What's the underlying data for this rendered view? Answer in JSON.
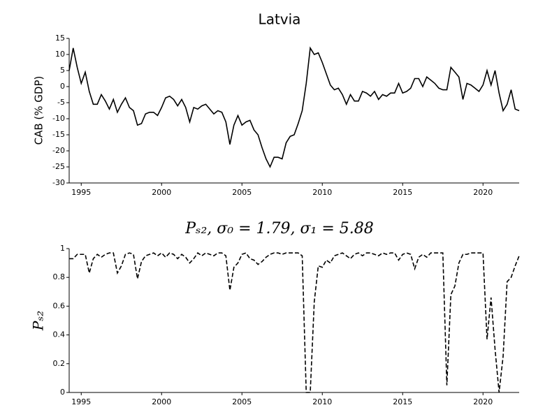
{
  "chart_data": [
    {
      "type": "line",
      "title": "Latvia",
      "y_label": "CAB (% GDP)",
      "x": [
        1994.25,
        1994.5,
        1994.75,
        1995,
        1995.25,
        1995.5,
        1995.75,
        1996,
        1996.25,
        1996.5,
        1996.75,
        1997,
        1997.25,
        1997.5,
        1997.75,
        1998,
        1998.25,
        1998.5,
        1998.75,
        1999,
        1999.25,
        1999.5,
        1999.75,
        2000,
        2000.25,
        2000.5,
        2000.75,
        2001,
        2001.25,
        2001.5,
        2001.75,
        2002,
        2002.25,
        2002.5,
        2002.75,
        2003,
        2003.25,
        2003.5,
        2003.75,
        2004,
        2004.25,
        2004.5,
        2004.75,
        2005,
        2005.25,
        2005.5,
        2005.75,
        2006,
        2006.25,
        2006.5,
        2006.75,
        2007,
        2007.25,
        2007.5,
        2007.75,
        2008,
        2008.25,
        2008.5,
        2008.75,
        2009,
        2009.25,
        2009.5,
        2009.75,
        2010,
        2010.25,
        2010.5,
        2010.75,
        2011,
        2011.25,
        2011.5,
        2011.75,
        2012,
        2012.25,
        2012.5,
        2012.75,
        2013,
        2013.25,
        2013.5,
        2013.75,
        2014,
        2014.25,
        2014.5,
        2014.75,
        2015,
        2015.25,
        2015.5,
        2015.75,
        2016,
        2016.25,
        2016.5,
        2016.75,
        2017,
        2017.25,
        2017.5,
        2017.75,
        2018,
        2018.25,
        2018.5,
        2018.75,
        2019,
        2019.25,
        2019.5,
        2019.75,
        2020,
        2020.25,
        2020.5,
        2020.75,
        2021,
        2021.25,
        2021.5,
        2021.75,
        2022,
        2022.25
      ],
      "series": [
        {
          "color": "#000000",
          "linestyle": "solid",
          "values": [
            5,
            12,
            6,
            1,
            4.5,
            -1.5,
            -5.5,
            -5.5,
            -2.5,
            -4.5,
            -7,
            -4,
            -8,
            -5.5,
            -3.5,
            -6.5,
            -7.5,
            -12,
            -11.5,
            -8.5,
            -8,
            -8,
            -9,
            -6.5,
            -3.5,
            -3,
            -4,
            -6,
            -4,
            -6.5,
            -11,
            -6.5,
            -7,
            -6,
            -5.5,
            -7,
            -8.5,
            -7.5,
            -8,
            -11,
            -18,
            -12,
            -9,
            -12,
            -11,
            -10.5,
            -13.5,
            -15,
            -19,
            -22.5,
            -25,
            -22,
            -22,
            -22.5,
            -17.5,
            -15.5,
            -15,
            -11.5,
            -7.5,
            1,
            12,
            10,
            10.5,
            7.5,
            4,
            0.5,
            -1,
            -0.5,
            -2.5,
            -5.5,
            -2.5,
            -4.5,
            -4.5,
            -1.5,
            -2,
            -3,
            -1.5,
            -4,
            -2.5,
            -3,
            -2,
            -2,
            1,
            -2,
            -1.5,
            -0.5,
            2.5,
            2.5,
            0,
            3,
            2,
            1,
            -0.5,
            -1,
            -1,
            6,
            4.5,
            3,
            -4,
            1,
            0.5,
            -0.5,
            -1.5,
            0.5,
            5,
            0.5,
            5,
            -2,
            -7.5,
            -5.5,
            -1,
            -7,
            -7.5
          ]
        }
      ],
      "xlim": [
        1994.25,
        2022.25
      ],
      "xticks": [
        1995,
        2000,
        2005,
        2010,
        2015,
        2020
      ],
      "ylim": [
        -30,
        15
      ],
      "yticks": [
        -30,
        -25,
        -20,
        -15,
        -10,
        -5,
        0,
        5,
        10,
        15
      ]
    },
    {
      "type": "line",
      "title": "Pₛ₂, σ₀ = 1.79, σ₁ = 5.88",
      "y_label": "Pₛ₂",
      "x": [
        1994.25,
        1994.5,
        1994.75,
        1995,
        1995.25,
        1995.5,
        1995.75,
        1996,
        1996.25,
        1996.5,
        1996.75,
        1997,
        1997.25,
        1997.5,
        1997.75,
        1998,
        1998.25,
        1998.5,
        1998.75,
        1999,
        1999.25,
        1999.5,
        1999.75,
        2000,
        2000.25,
        2000.5,
        2000.75,
        2001,
        2001.25,
        2001.5,
        2001.75,
        2002,
        2002.25,
        2002.5,
        2002.75,
        2003,
        2003.25,
        2003.5,
        2003.75,
        2004,
        2004.25,
        2004.5,
        2004.75,
        2005,
        2005.25,
        2005.5,
        2005.75,
        2006,
        2006.25,
        2006.5,
        2006.75,
        2007,
        2007.25,
        2007.5,
        2007.75,
        2008,
        2008.25,
        2008.5,
        2008.75,
        2009,
        2009.25,
        2009.5,
        2009.75,
        2010,
        2010.25,
        2010.5,
        2010.75,
        2011,
        2011.25,
        2011.5,
        2011.75,
        2012,
        2012.25,
        2012.5,
        2012.75,
        2013,
        2013.25,
        2013.5,
        2013.75,
        2014,
        2014.25,
        2014.5,
        2014.75,
        2015,
        2015.25,
        2015.5,
        2015.75,
        2016,
        2016.25,
        2016.5,
        2016.75,
        2017,
        2017.25,
        2017.5,
        2017.75,
        2018,
        2018.25,
        2018.5,
        2018.75,
        2019,
        2019.25,
        2019.5,
        2019.75,
        2020,
        2020.25,
        2020.5,
        2020.75,
        2021,
        2021.25,
        2021.5,
        2021.75,
        2022,
        2022.25
      ],
      "series": [
        {
          "color": "#000000",
          "linestyle": "dashed",
          "values": [
            0.93,
            0.93,
            0.96,
            0.96,
            0.96,
            0.83,
            0.93,
            0.96,
            0.94,
            0.96,
            0.97,
            0.97,
            0.83,
            0.88,
            0.96,
            0.97,
            0.96,
            0.79,
            0.91,
            0.95,
            0.96,
            0.97,
            0.95,
            0.97,
            0.94,
            0.97,
            0.96,
            0.93,
            0.96,
            0.94,
            0.9,
            0.93,
            0.97,
            0.95,
            0.97,
            0.96,
            0.95,
            0.97,
            0.97,
            0.95,
            0.71,
            0.87,
            0.9,
            0.96,
            0.97,
            0.93,
            0.92,
            0.89,
            0.91,
            0.94,
            0.96,
            0.97,
            0.97,
            0.96,
            0.97,
            0.97,
            0.97,
            0.97,
            0.95,
            0,
            0,
            0.63,
            0.88,
            0.87,
            0.92,
            0.9,
            0.95,
            0.96,
            0.97,
            0.95,
            0.93,
            0.96,
            0.97,
            0.95,
            0.97,
            0.97,
            0.96,
            0.95,
            0.97,
            0.96,
            0.97,
            0.97,
            0.92,
            0.96,
            0.97,
            0.96,
            0.86,
            0.94,
            0.96,
            0.94,
            0.97,
            0.97,
            0.97,
            0.97,
            0.05,
            0.68,
            0.74,
            0.9,
            0.96,
            0.96,
            0.97,
            0.97,
            0.97,
            0.97,
            0.37,
            0.66,
            0.3,
            0,
            0.25,
            0.77,
            0.8,
            0.88,
            0.95
          ]
        }
      ],
      "xlim": [
        1994.25,
        2022.25
      ],
      "xticks": [
        1995,
        2000,
        2005,
        2010,
        2015,
        2020
      ],
      "ylim": [
        0,
        1
      ],
      "yticks": [
        0,
        0.2,
        0.4,
        0.6,
        0.8,
        1
      ]
    }
  ]
}
